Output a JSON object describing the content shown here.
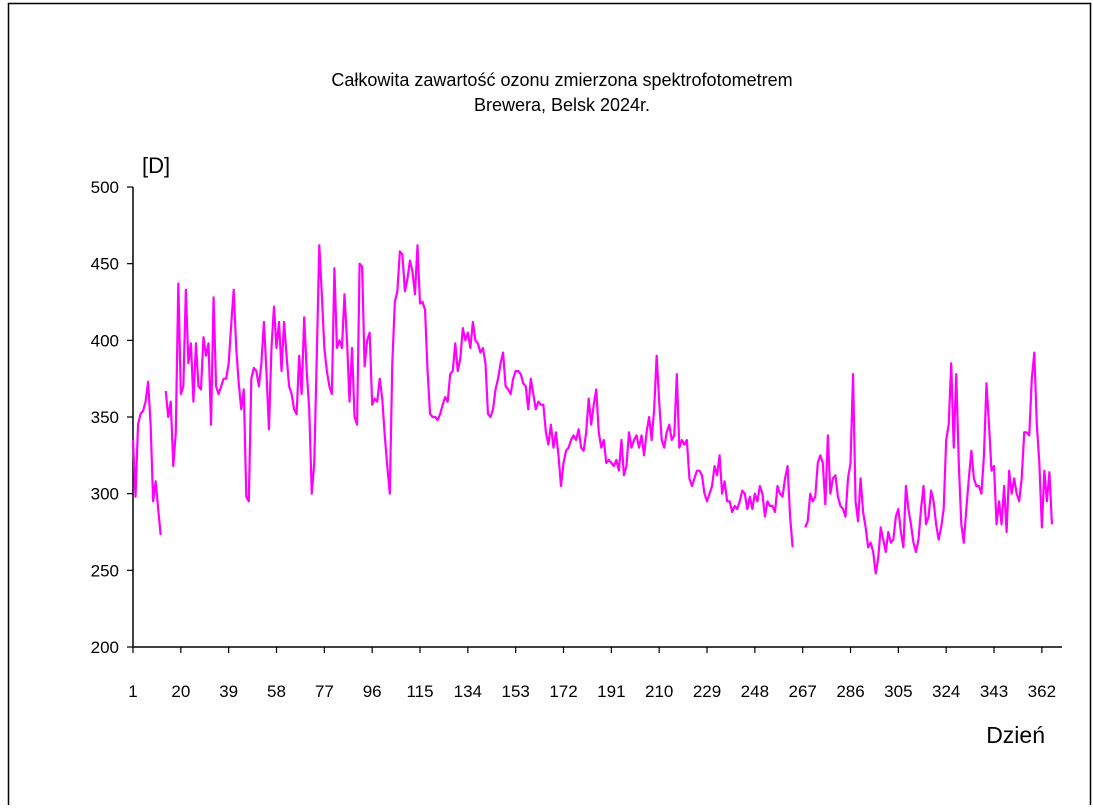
{
  "chart_data": {
    "type": "line",
    "title": [
      "Całkowita zawartość ozonu zmierzona spektrofotometrem",
      "Brewera, Belsk 2024r."
    ],
    "y_label": "[D]",
    "x_label": "Dzień",
    "xlim": [
      1,
      370
    ],
    "xticks": [
      1,
      20,
      39,
      58,
      77,
      96,
      115,
      134,
      153,
      172,
      191,
      210,
      229,
      248,
      267,
      286,
      305,
      324,
      343,
      362
    ],
    "ylim": [
      200,
      500
    ],
    "yticks": [
      200,
      250,
      300,
      350,
      400,
      450,
      500
    ],
    "x": [
      1,
      2,
      3,
      4,
      5,
      6,
      7,
      8,
      9,
      10,
      11,
      12,
      13,
      14,
      15,
      16,
      17,
      18,
      19,
      20,
      21,
      22,
      23,
      24,
      25,
      26,
      27,
      28,
      29,
      30,
      31,
      32,
      33,
      34,
      35,
      36,
      37,
      38,
      39,
      40,
      41,
      42,
      43,
      44,
      45,
      46,
      47,
      48,
      49,
      50,
      51,
      52,
      53,
      54,
      55,
      56,
      57,
      58,
      59,
      60,
      61,
      62,
      63,
      64,
      65,
      66,
      67,
      68,
      69,
      70,
      71,
      72,
      73,
      74,
      75,
      76,
      77,
      78,
      79,
      80,
      81,
      82,
      83,
      84,
      85,
      86,
      87,
      88,
      89,
      90,
      91,
      92,
      93,
      94,
      95,
      96,
      97,
      98,
      99,
      100,
      101,
      102,
      103,
      104,
      105,
      106,
      107,
      108,
      109,
      110,
      111,
      112,
      113,
      114,
      115,
      116,
      117,
      118,
      119,
      120,
      121,
      122,
      123,
      124,
      125,
      126,
      127,
      128,
      129,
      130,
      131,
      132,
      133,
      134,
      135,
      136,
      137,
      138,
      139,
      140,
      141,
      142,
      143,
      144,
      145,
      146,
      147,
      148,
      149,
      150,
      151,
      152,
      153,
      154,
      155,
      156,
      157,
      158,
      159,
      160,
      161,
      162,
      163,
      164,
      165,
      166,
      167,
      168,
      169,
      170,
      171,
      172,
      173,
      174,
      175,
      176,
      177,
      178,
      179,
      180,
      181,
      182,
      183,
      184,
      185,
      186,
      187,
      188,
      189,
      190,
      191,
      192,
      193,
      194,
      195,
      196,
      197,
      198,
      199,
      200,
      201,
      202,
      203,
      204,
      205,
      206,
      207,
      208,
      209,
      210,
      211,
      212,
      213,
      214,
      215,
      216,
      217,
      218,
      219,
      220,
      221,
      222,
      223,
      224,
      225,
      226,
      227,
      228,
      229,
      230,
      231,
      232,
      233,
      234,
      235,
      236,
      237,
      238,
      239,
      240,
      241,
      242,
      243,
      244,
      245,
      246,
      247,
      248,
      249,
      250,
      251,
      252,
      253,
      254,
      255,
      256,
      257,
      258,
      259,
      260,
      261,
      262,
      263,
      264,
      265,
      266,
      267,
      268,
      269,
      270,
      271,
      272,
      273,
      274,
      275,
      276,
      277,
      278,
      279,
      280,
      281,
      282,
      283,
      284,
      285,
      286,
      287,
      288,
      289,
      290,
      291,
      292,
      293,
      294,
      295,
      296,
      297,
      298,
      299,
      300,
      301,
      302,
      303,
      304,
      305,
      306,
      307,
      308,
      309,
      310,
      311,
      312,
      313,
      314,
      315,
      316,
      317,
      318,
      319,
      320,
      321,
      322,
      323,
      324,
      325,
      326,
      327,
      328,
      329,
      330,
      331,
      332,
      333,
      334,
      335,
      336,
      337,
      338,
      339,
      340,
      341,
      342,
      343,
      344,
      345,
      346,
      347,
      348,
      349,
      350,
      351,
      352,
      353,
      354,
      355,
      356,
      357,
      358,
      359,
      360,
      361,
      362,
      363,
      364,
      365,
      366
    ],
    "series": [
      {
        "color": "#ff00ff",
        "values": [
          335,
          298,
          345,
          352,
          354,
          360,
          373,
          345,
          295,
          308,
          290,
          273,
          null,
          367,
          350,
          360,
          318,
          340,
          437,
          365,
          370,
          433,
          385,
          398,
          360,
          398,
          370,
          368,
          402,
          390,
          398,
          345,
          428,
          370,
          365,
          370,
          375,
          375,
          385,
          410,
          433,
          395,
          372,
          355,
          368,
          298,
          295,
          375,
          382,
          380,
          370,
          385,
          412,
          380,
          342,
          395,
          422,
          395,
          412,
          380,
          412,
          390,
          370,
          365,
          355,
          352,
          390,
          365,
          415,
          380,
          355,
          300,
          320,
          390,
          462,
          430,
          395,
          380,
          370,
          365,
          447,
          395,
          400,
          395,
          430,
          400,
          360,
          395,
          350,
          345,
          450,
          448,
          383,
          400,
          405,
          358,
          362,
          360,
          375,
          362,
          338,
          318,
          300,
          385,
          425,
          432,
          458,
          456,
          432,
          440,
          452,
          445,
          430,
          462,
          424,
          425,
          420,
          380,
          352,
          350,
          350,
          348,
          352,
          358,
          363,
          360,
          378,
          380,
          398,
          380,
          388,
          408,
          400,
          405,
          395,
          412,
          400,
          398,
          392,
          395,
          385,
          352,
          350,
          355,
          368,
          375,
          385,
          392,
          370,
          368,
          365,
          375,
          380,
          380,
          378,
          372,
          370,
          355,
          375,
          365,
          355,
          360,
          358,
          358,
          340,
          332,
          345,
          330,
          340,
          325,
          305,
          320,
          328,
          330,
          335,
          338,
          335,
          342,
          330,
          328,
          340,
          362,
          345,
          358,
          368,
          340,
          330,
          335,
          320,
          322,
          320,
          318,
          322,
          315,
          335,
          312,
          318,
          340,
          330,
          335,
          338,
          330,
          338,
          325,
          340,
          350,
          335,
          355,
          390,
          360,
          335,
          330,
          340,
          345,
          335,
          338,
          378,
          330,
          335,
          332,
          335,
          310,
          305,
          310,
          315,
          315,
          312,
          300,
          295,
          300,
          305,
          318,
          312,
          325,
          300,
          308,
          295,
          295,
          288,
          292,
          290,
          295,
          302,
          300,
          290,
          298,
          290,
          300,
          295,
          305,
          300,
          285,
          295,
          292,
          292,
          288,
          305,
          300,
          298,
          310,
          318,
          285,
          265,
          null,
          null,
          null,
          null,
          278,
          282,
          300,
          295,
          298,
          320,
          325,
          320,
          293,
          338,
          300,
          310,
          312,
          298,
          292,
          290,
          285,
          310,
          320,
          378,
          295,
          282,
          310,
          288,
          278,
          265,
          268,
          262,
          248,
          258,
          278,
          270,
          262,
          275,
          268,
          270,
          285,
          290,
          275,
          265,
          305,
          290,
          280,
          268,
          262,
          270,
          290,
          305,
          280,
          285,
          302,
          295,
          280,
          270,
          278,
          290,
          335,
          345,
          385,
          330,
          378,
          320,
          280,
          268,
          290,
          310,
          328,
          310,
          305,
          305,
          300,
          325,
          372,
          345,
          315,
          318,
          280,
          295,
          280,
          305,
          275,
          315,
          300,
          310,
          300,
          295,
          310,
          340,
          340,
          338,
          375,
          392,
          345,
          320,
          278,
          315,
          295,
          314,
          280
        ]
      }
    ]
  }
}
